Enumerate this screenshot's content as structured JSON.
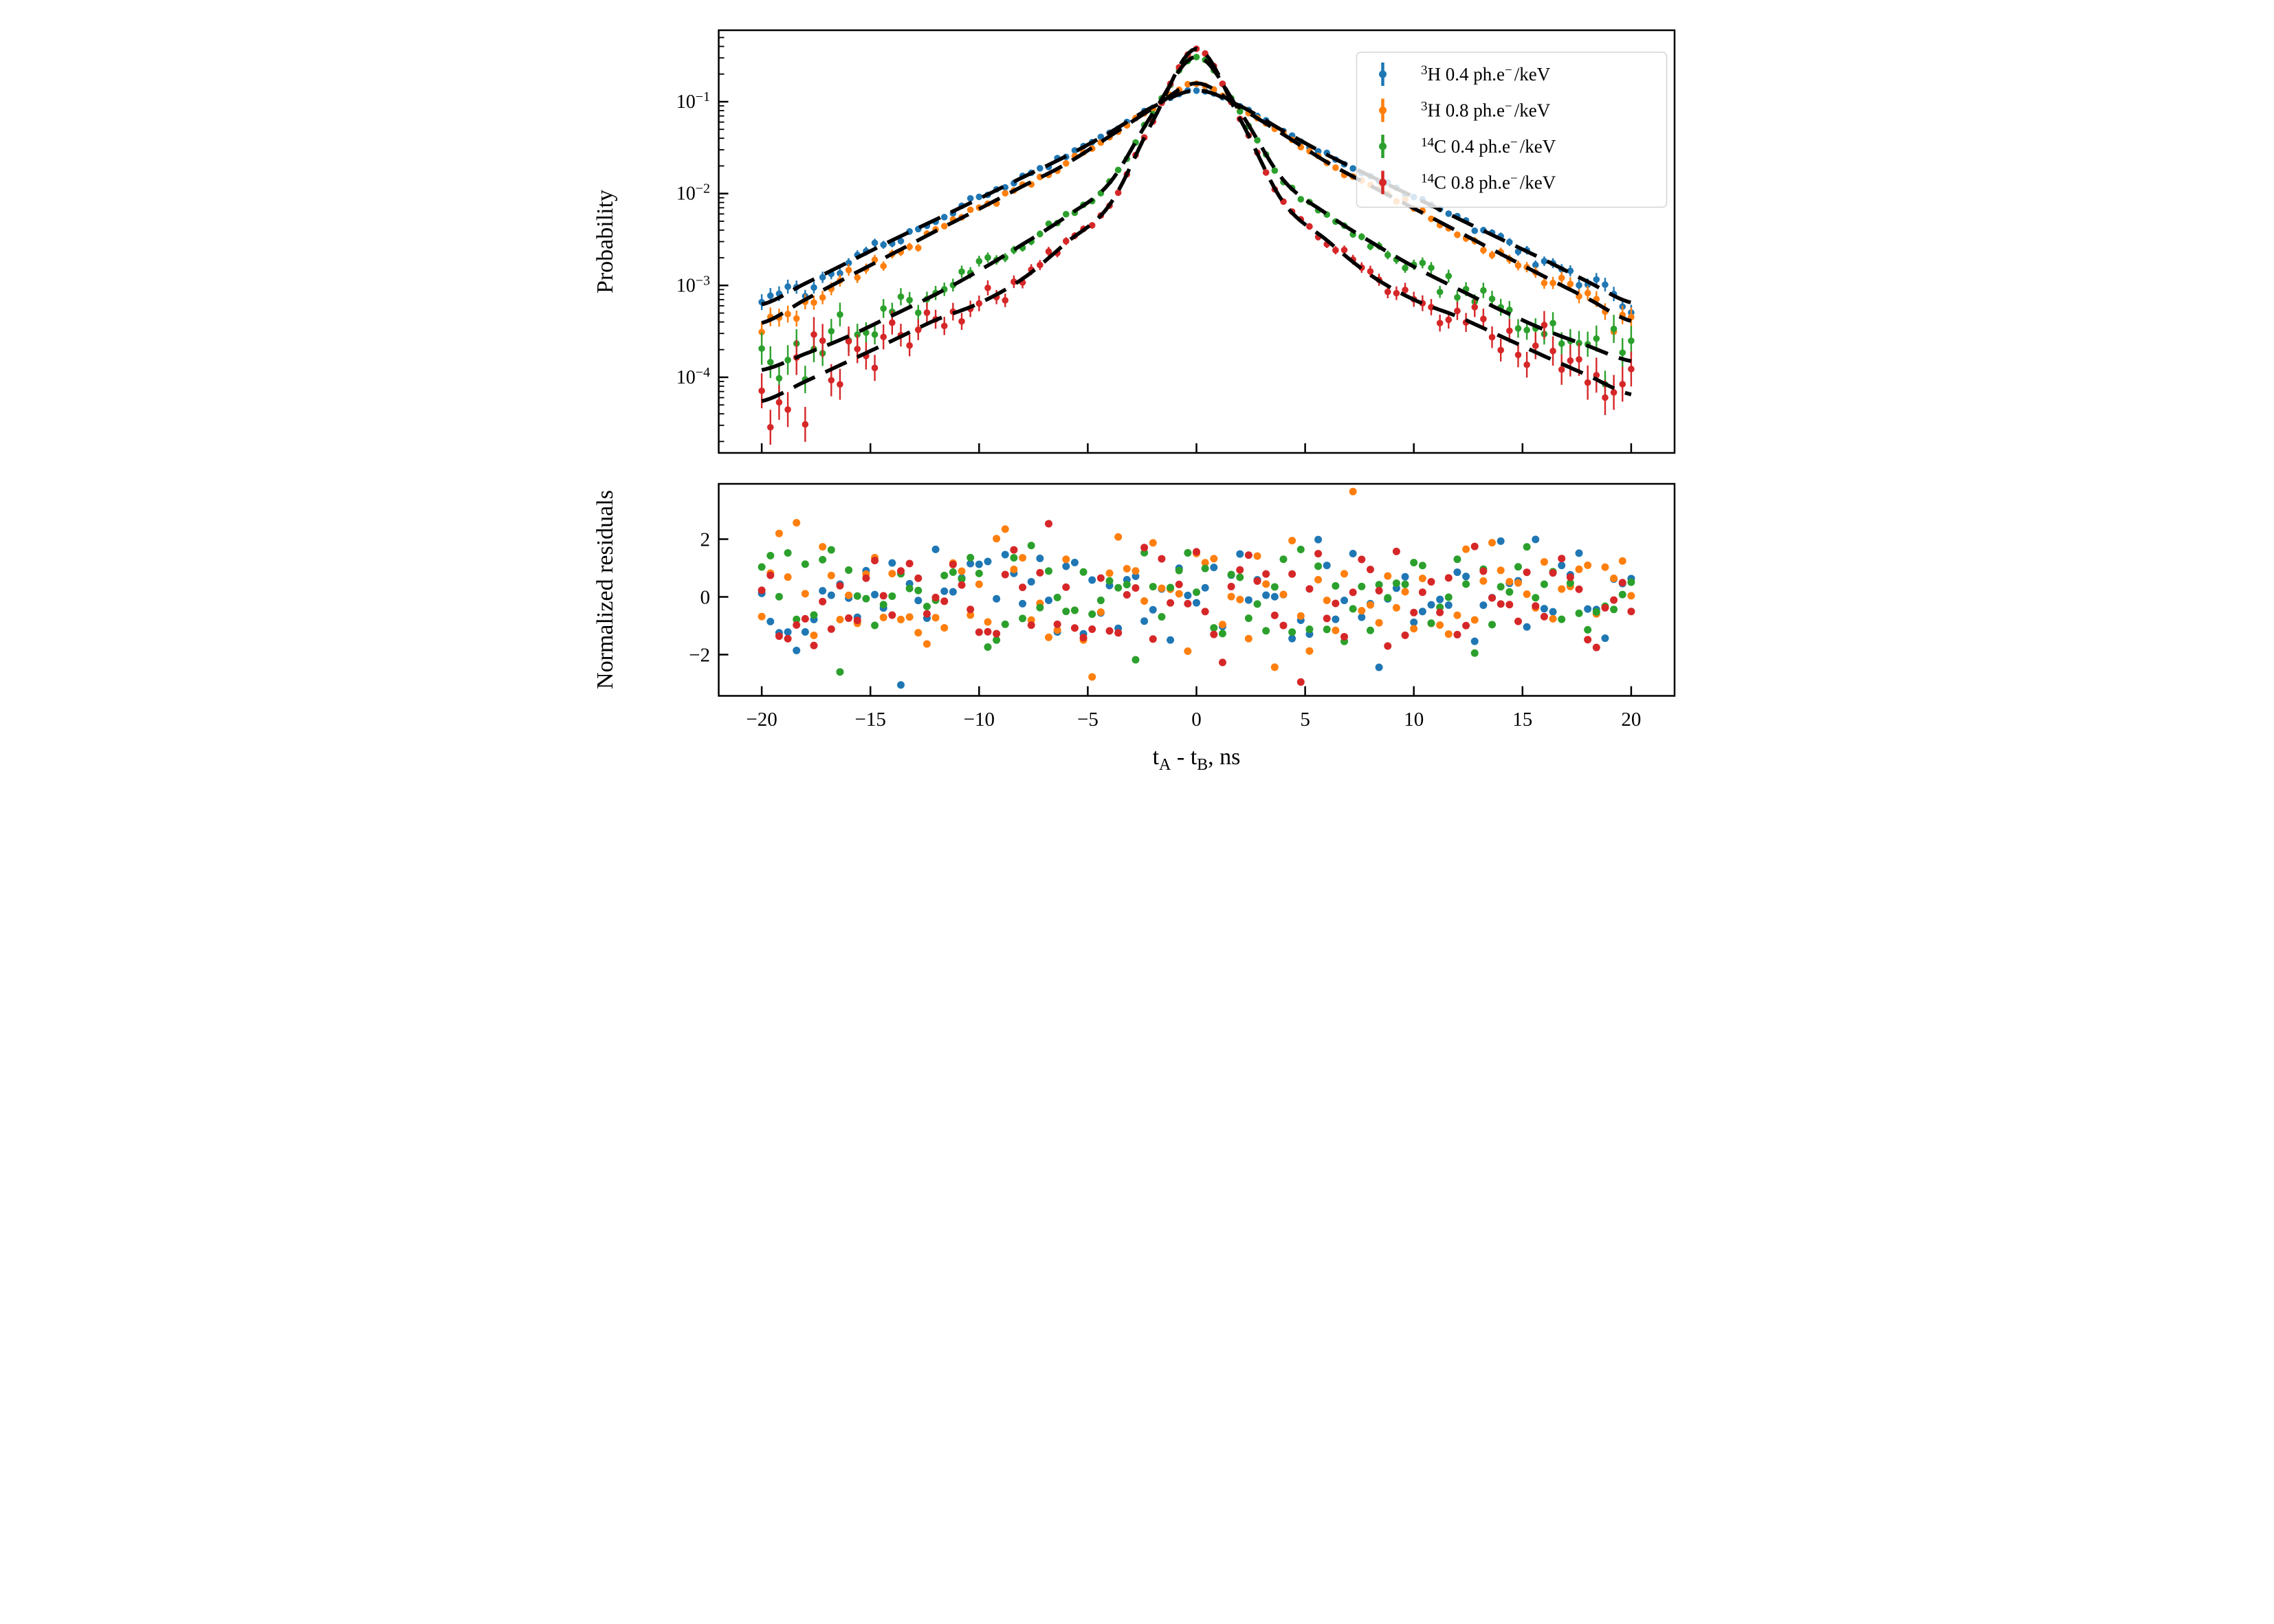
{
  "figure": {
    "description": "Two-panel timing distribution figure",
    "background": "#ffffff"
  },
  "legend": {
    "items": [
      {
        "label": "³H 0.4 ph.e⁻/keV",
        "sup": "3",
        "main": "H 0.4 ph.e",
        "sup2": "−",
        "tail": "/keV",
        "color": "#1f77b4"
      },
      {
        "label": "³H 0.8 ph.e⁻/keV",
        "sup": "3",
        "main": "H 0.8 ph.e",
        "sup2": "−",
        "tail": "/keV",
        "color": "#ff7f0e"
      },
      {
        "label": "¹⁴C 0.4 ph.e⁻/keV",
        "sup": "14",
        "main": "C 0.4 ph.e",
        "sup2": "−",
        "tail": "/keV",
        "color": "#2ca02c"
      },
      {
        "label": "¹⁴C 0.8 ph.e⁻/keV",
        "sup": "14",
        "main": "C 0.8 ph.e",
        "sup2": "−",
        "tail": "/keV",
        "color": "#d62728"
      }
    ]
  },
  "chart_data": [
    {
      "id": "timing-probability",
      "type": "scatter",
      "title": "",
      "x_axis": {
        "label": "tA - tB, ns",
        "min": -22,
        "max": 22,
        "tick_values": [
          -20,
          -15,
          -10,
          -5,
          0,
          5,
          10,
          15,
          20
        ]
      },
      "y_axis": {
        "label": "Probability",
        "scale": "log",
        "min": 1.5e-05,
        "max": 0.6,
        "tick_values": [
          0.1,
          0.01,
          0.001,
          0.0001
        ],
        "tick_labels": [
          {
            "base": "10",
            "exp": "−1"
          },
          {
            "base": "10",
            "exp": "−2"
          },
          {
            "base": "10",
            "exp": "−3"
          },
          {
            "base": "10",
            "exp": "−4"
          }
        ]
      },
      "fit_style": {
        "type": "dashed",
        "color": "#000000"
      },
      "series": [
        {
          "label": "³H 0.4 ph.e⁻/keV",
          "color": "#1f77b4",
          "marker": "o",
          "seed": 17,
          "fit_t": [
            -20,
            -18,
            -16,
            -14,
            -12,
            -10,
            -8,
            -6,
            -4,
            -2,
            0,
            2,
            4,
            6,
            8,
            10,
            12,
            14,
            16,
            18,
            20
          ],
          "fit_p": [
            0.00062,
            0.00105,
            0.0018,
            0.0031,
            0.0052,
            0.0088,
            0.015,
            0.0255,
            0.046,
            0.088,
            0.133,
            0.09,
            0.048,
            0.0265,
            0.0155,
            0.0092,
            0.0054,
            0.0032,
            0.0019,
            0.0011,
            0.00065
          ],
          "points": {
            "n": 101,
            "t_min": -20,
            "t_step": 0.4
          },
          "error_model": {
            "rel_coeff": 0.0055,
            "rel_max": 0.55
          }
        },
        {
          "label": "³H 0.8 ph.e⁻/keV",
          "color": "#ff7f0e",
          "marker": "o",
          "seed": 42,
          "fit_t": [
            -20,
            -18,
            -16,
            -14,
            -12,
            -10,
            -8,
            -6,
            -4,
            -2,
            0,
            2,
            4,
            6,
            8,
            10,
            12,
            14,
            16,
            18,
            20
          ],
          "fit_p": [
            0.00039,
            0.0007,
            0.00125,
            0.0022,
            0.0039,
            0.0068,
            0.012,
            0.021,
            0.042,
            0.085,
            0.159,
            0.086,
            0.044,
            0.022,
            0.0122,
            0.0069,
            0.0039,
            0.0022,
            0.00125,
            0.00072,
            0.00041
          ],
          "points": {
            "n": 101,
            "t_min": -20,
            "t_step": 0.4
          },
          "error_model": {
            "rel_coeff": 0.0055,
            "rel_max": 0.55
          }
        },
        {
          "label": "¹⁴C 0.4 ph.e⁻/keV",
          "color": "#2ca02c",
          "marker": "o",
          "seed": 77,
          "fit_t": [
            -20,
            -18,
            -16,
            -14,
            -12,
            -10,
            -8,
            -6,
            -4,
            -2,
            0,
            2,
            4,
            6,
            8,
            10,
            12,
            14,
            16,
            18,
            20
          ],
          "fit_p": [
            0.00012,
            0.00018,
            0.00028,
            0.00047,
            0.0008,
            0.00145,
            0.0028,
            0.0056,
            0.013,
            0.075,
            0.309,
            0.078,
            0.014,
            0.006,
            0.003,
            0.0016,
            0.00092,
            0.00054,
            0.00033,
            0.00022,
            0.00015
          ],
          "points": {
            "n": 101,
            "t_min": -20,
            "t_step": 0.4
          },
          "error_model": {
            "rel_coeff": 0.0055,
            "rel_max": 0.55
          }
        },
        {
          "label": "¹⁴C 0.8 ph.e⁻/keV",
          "color": "#d62728",
          "marker": "o",
          "seed": 99,
          "fit_t": [
            -20,
            -18,
            -16,
            -14,
            -12,
            -10,
            -8,
            -6,
            -4,
            -2,
            0,
            2,
            4,
            6,
            8,
            10,
            12,
            14,
            16,
            18,
            20
          ],
          "fit_p": [
            5.5e-05,
            9e-05,
            0.00015,
            0.00025,
            0.00042,
            0.00064,
            0.00118,
            0.0029,
            0.0075,
            0.062,
            0.377,
            0.065,
            0.008,
            0.0031,
            0.0013,
            0.0007,
            0.00046,
            0.00028,
            0.00017,
            0.000105,
            6.5e-05
          ],
          "points": {
            "n": 101,
            "t_min": -20,
            "t_step": 0.4
          },
          "error_model": {
            "rel_coeff": 0.0055,
            "rel_max": 0.55
          }
        }
      ]
    },
    {
      "id": "normalized-residuals",
      "type": "scatter",
      "x_axis": {
        "label": "tA - tB, ns",
        "min": -22,
        "max": 22,
        "tick_values": [
          -20,
          -15,
          -10,
          -5,
          0,
          5,
          10,
          15,
          20
        ],
        "tick_labels": [
          "−20",
          "−15",
          "−10",
          "−5",
          "0",
          "5",
          "10",
          "15",
          "20"
        ],
        "label_parts": {
          "p1": "t",
          "s1": "A",
          "p2": " - t",
          "s2": "B",
          "p3": ", ns"
        }
      },
      "y_axis": {
        "label": "Normalized residuals",
        "min": -3.43,
        "max": 3.92,
        "tick_values": [
          2,
          0,
          -2
        ],
        "tick_labels": [
          "2",
          "0",
          "−2"
        ]
      },
      "series": [
        {
          "label": "³H 0.4 ph.e⁻/keV",
          "color": "#1f77b4",
          "seed": 5,
          "points": {
            "n": 101,
            "t_min": -20,
            "t_step": 0.4
          },
          "distribution": {
            "mean": 0,
            "sd": 1,
            "clip_min": -3.1,
            "clip_max": 3.7
          }
        },
        {
          "label": "³H 0.8 ph.e⁻/keV",
          "color": "#ff7f0e",
          "seed": 13,
          "points": {
            "n": 101,
            "t_min": -20,
            "t_step": 0.4
          },
          "distribution": {
            "mean": 0,
            "sd": 1,
            "clip_min": -3.1,
            "clip_max": 3.7
          }
        },
        {
          "label": "¹⁴C 0.4 ph.e⁻/keV",
          "color": "#2ca02c",
          "seed": 29,
          "points": {
            "n": 101,
            "t_min": -20,
            "t_step": 0.4
          },
          "distribution": {
            "mean": 0,
            "sd": 1,
            "clip_min": -3.1,
            "clip_max": 3.7
          }
        },
        {
          "label": "¹⁴C 0.8 ph.e⁻/keV",
          "color": "#d62728",
          "seed": 57,
          "points": {
            "n": 101,
            "t_min": -20,
            "t_step": 0.4
          },
          "distribution": {
            "mean": 0,
            "sd": 1,
            "clip_min": -3.1,
            "clip_max": 3.7
          }
        }
      ],
      "outliers": [
        {
          "series": 1,
          "t": 7.2,
          "v": 3.65
        },
        {
          "series": 0,
          "t": -13.4,
          "v": -3.05
        },
        {
          "series": 3,
          "t": 4.6,
          "v": -2.95
        },
        {
          "series": 2,
          "t": -16.4,
          "v": -2.6
        }
      ]
    }
  ]
}
